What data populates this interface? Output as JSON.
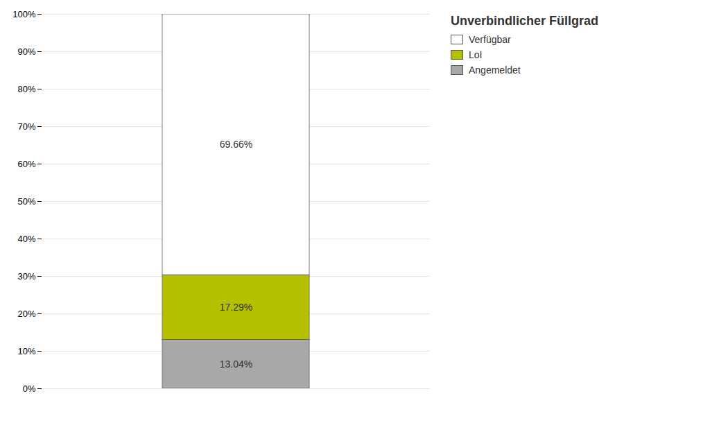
{
  "chart_data": {
    "type": "bar",
    "title": "Unverbindlicher Füllgrad",
    "stacked": true,
    "categories": [
      null
    ],
    "series": [
      {
        "name": "Angemeldet",
        "color": "#a8a8a8",
        "values": [
          13.04
        ],
        "value_labels": [
          "13.04%"
        ]
      },
      {
        "name": "LoI",
        "color": "#b5c000",
        "values": [
          17.29
        ],
        "value_labels": [
          "17.29%"
        ]
      },
      {
        "name": "Verfügbar",
        "color": "#ffffff",
        "values": [
          69.66
        ],
        "value_labels": [
          "69.66%"
        ]
      }
    ],
    "ylim": [
      0,
      100
    ],
    "yticks": [
      {
        "value": 0,
        "label": "0%"
      },
      {
        "value": 10,
        "label": "10%"
      },
      {
        "value": 20,
        "label": "20%"
      },
      {
        "value": 30,
        "label": "30%"
      },
      {
        "value": 40,
        "label": "40%"
      },
      {
        "value": 50,
        "label": "50%"
      },
      {
        "value": 60,
        "label": "60%"
      },
      {
        "value": 70,
        "label": "70%"
      },
      {
        "value": 80,
        "label": "80%"
      },
      {
        "value": 90,
        "label": "90%"
      },
      {
        "value": 100,
        "label": "100%"
      }
    ],
    "grid": true,
    "legend": "right",
    "data_labels": true,
    "tick_labels": "y"
  }
}
